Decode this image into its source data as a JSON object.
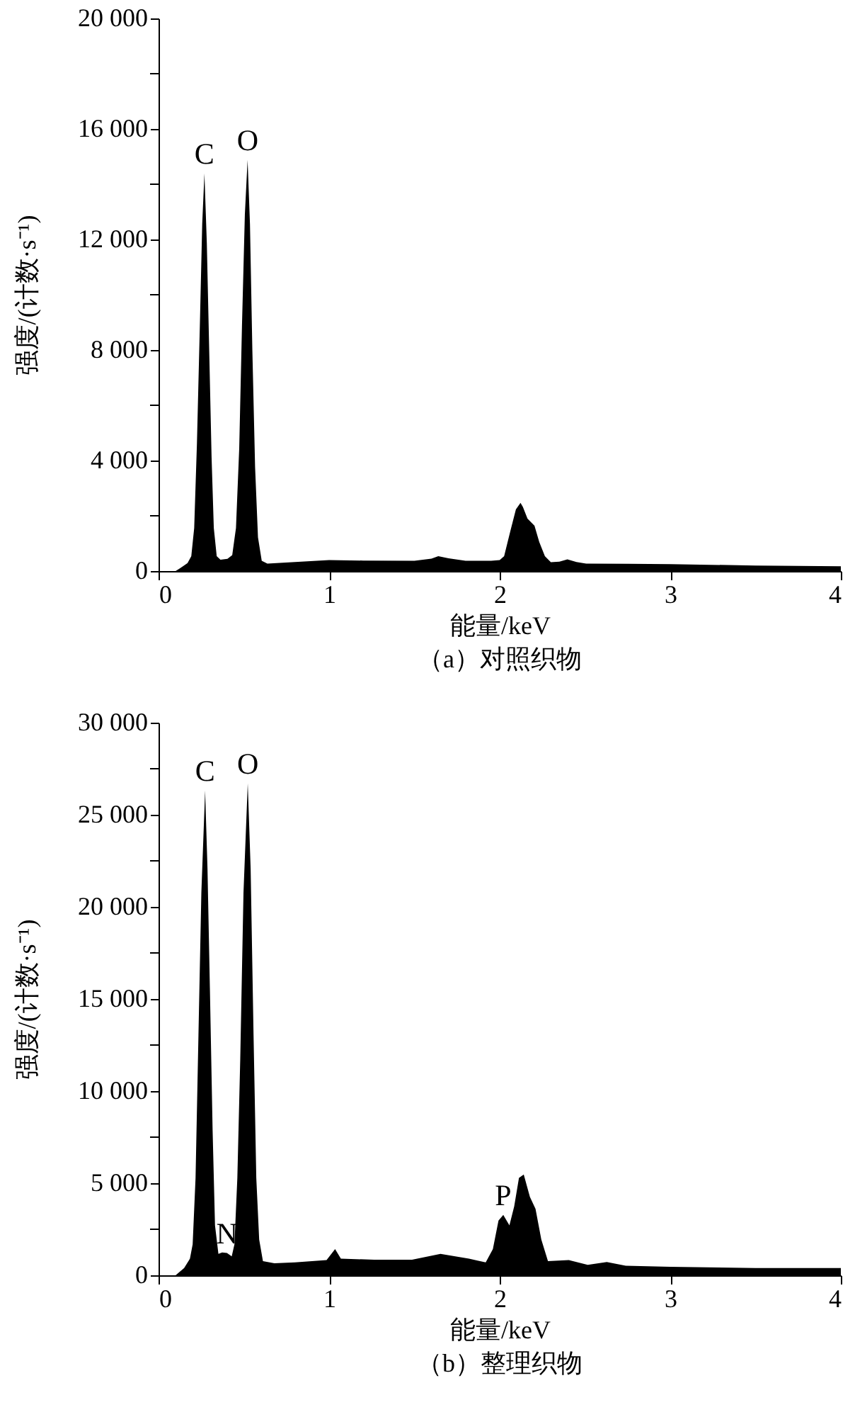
{
  "chart_data": [
    {
      "type": "area",
      "xlabel": "能量/keV",
      "ylabel": "强度/(计数·s⁻¹)",
      "color": "#000000",
      "x": [
        0.0,
        0.1,
        0.143,
        0.17,
        0.192,
        0.209,
        0.225,
        0.242,
        0.256,
        0.269,
        0.283,
        0.297,
        0.311,
        0.324,
        0.341,
        0.363,
        0.404,
        0.432,
        0.454,
        0.473,
        0.489,
        0.506,
        0.522,
        0.536,
        0.55,
        0.566,
        0.583,
        0.605,
        0.638,
        0.8,
        1.0,
        1.2,
        1.5,
        1.6,
        1.64,
        1.7,
        1.8,
        1.95,
        2.0,
        2.026,
        2.067,
        2.095,
        2.122,
        2.136,
        2.163,
        2.204,
        2.232,
        2.265,
        2.3,
        2.35,
        2.397,
        2.45,
        2.507,
        2.75,
        3.0,
        3.5,
        4.0
      ],
      "values": [
        0,
        0,
        170,
        290,
        540,
        1560,
        4600,
        8840,
        12560,
        14390,
        11880,
        7990,
        4100,
        1560,
        540,
        410,
        440,
        580,
        1560,
        4440,
        8840,
        12900,
        14880,
        12560,
        7990,
        3760,
        1220,
        370,
        270,
        330,
        400,
        380,
        370,
        450,
        540,
        460,
        370,
        370,
        400,
        540,
        1560,
        2230,
        2470,
        2320,
        1900,
        1640,
        1050,
        540,
        320,
        340,
        420,
        330,
        270,
        260,
        250,
        200,
        170
      ],
      "xlim": [
        0,
        4
      ],
      "xticks": [
        0,
        1,
        2,
        3,
        4
      ],
      "ylim": [
        0,
        20000
      ],
      "yticks": [
        0,
        {
          "value": 2000,
          "label": null
        },
        {
          "value": 4000,
          "label": "4 000"
        },
        {
          "value": 6000,
          "label": null
        },
        {
          "value": 8000,
          "label": "8 000"
        },
        {
          "value": 10000,
          "label": null
        },
        {
          "value": 12000,
          "label": "12 000"
        },
        {
          "value": 14000,
          "label": null
        },
        {
          "value": 16000,
          "label": "16 000"
        },
        {
          "value": 18000,
          "label": null
        },
        {
          "value": 20000,
          "label": "20 000"
        }
      ],
      "annotations": [
        {
          "text": "C",
          "x": 0.269,
          "y": 14390
        },
        {
          "text": "O",
          "x": 0.522,
          "y": 14880
        },
        "（a）对照织物"
      ]
    },
    {
      "type": "area",
      "xlabel": "能量/keV",
      "ylabel": "强度/(计数·s⁻¹)",
      "color": "#000000",
      "x": [
        0.0,
        0.1,
        0.15,
        0.184,
        0.2,
        0.217,
        0.234,
        0.251,
        0.273,
        0.287,
        0.301,
        0.317,
        0.331,
        0.351,
        0.373,
        0.401,
        0.429,
        0.445,
        0.462,
        0.479,
        0.498,
        0.523,
        0.54,
        0.557,
        0.573,
        0.59,
        0.612,
        0.679,
        0.8,
        0.985,
        1.035,
        1.069,
        1.264,
        1.486,
        1.653,
        1.82,
        1.918,
        1.96,
        1.993,
        2.021,
        2.057,
        2.085,
        2.113,
        2.141,
        2.177,
        2.21,
        2.244,
        2.283,
        2.405,
        2.516,
        2.628,
        2.739,
        3.0,
        3.5,
        4.0
      ],
      "values": [
        0,
        0,
        390,
        900,
        1680,
        5290,
        13030,
        20770,
        26320,
        22060,
        15610,
        7870,
        2710,
        1160,
        1240,
        1210,
        1030,
        1680,
        5290,
        11740,
        20770,
        26700,
        22060,
        13030,
        5290,
        1940,
        770,
        650,
        700,
        830,
        1420,
        900,
        850,
        850,
        1160,
        900,
        700,
        1420,
        2970,
        3280,
        2710,
        3740,
        5290,
        5470,
        4260,
        3610,
        1940,
        770,
        830,
        570,
        720,
        520,
        460,
        390,
        390
      ],
      "xlim": [
        0,
        4
      ],
      "xticks": [
        0,
        1,
        2,
        3,
        4
      ],
      "ylim": [
        0,
        30000
      ],
      "yticks": [
        0,
        {
          "value": 2500,
          "label": null
        },
        {
          "value": 5000,
          "label": "5 000"
        },
        {
          "value": 7500,
          "label": null
        },
        {
          "value": 10000,
          "label": "10 000"
        },
        {
          "value": 12500,
          "label": null
        },
        {
          "value": 15000,
          "label": "15 000"
        },
        {
          "value": 17500,
          "label": null
        },
        {
          "value": 20000,
          "label": "20 000"
        },
        {
          "value": 22500,
          "label": null
        },
        {
          "value": 25000,
          "label": "25 000"
        },
        {
          "value": 27500,
          "label": null
        },
        {
          "value": 30000,
          "label": "30 000"
        }
      ],
      "annotations": [
        {
          "text": "C",
          "x": 0.273,
          "y": 26320
        },
        {
          "text": "O",
          "x": 0.523,
          "y": 26700
        },
        {
          "text": "N",
          "x": 0.401,
          "y": 1210
        },
        {
          "text": "P",
          "x": 2.021,
          "y": 3280
        },
        "（b）整理织物"
      ]
    }
  ]
}
